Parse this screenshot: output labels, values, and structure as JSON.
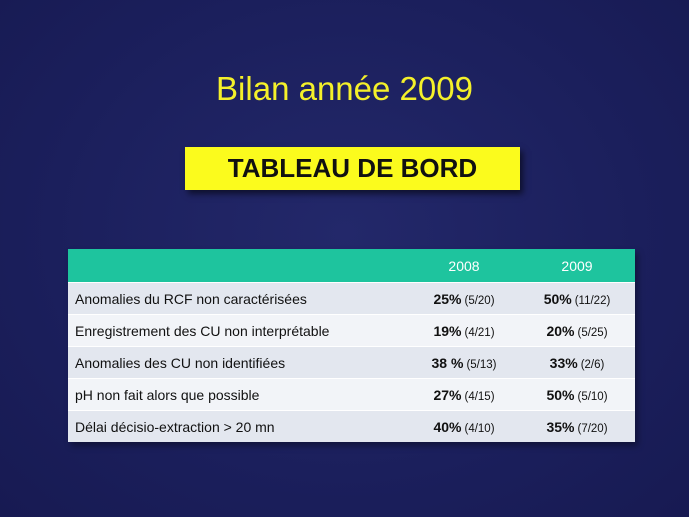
{
  "slide": {
    "title": "Bilan année 2009",
    "banner": "TABLEAU DE BORD"
  },
  "table": {
    "header": {
      "label": "",
      "col2008": "2008",
      "col2009": "2009"
    },
    "rows": [
      {
        "label": "Anomalies du RCF non caractérisées",
        "v2008_pct": "25%",
        "v2008_frac": "(5/20)",
        "v2009_pct": "50%",
        "v2009_frac": "(11/22)"
      },
      {
        "label": "Enregistrement des CU non interprétable",
        "v2008_pct": "19%",
        "v2008_frac": "(4/21)",
        "v2009_pct": "20%",
        "v2009_frac": "(5/25)"
      },
      {
        "label": "Anomalies des CU non identifiées",
        "v2008_pct": "38 %",
        "v2008_frac": "(5/13)",
        "v2009_pct": "33%",
        "v2009_frac": "(2/6)"
      },
      {
        "label": "pH non fait alors que possible",
        "v2008_pct": "27%",
        "v2008_frac": "(4/15)",
        "v2009_pct": "50%",
        "v2009_frac": "(5/10)"
      },
      {
        "label": "Délai décisio-extraction > 20 mn",
        "v2008_pct": "40%",
        "v2008_frac": "(4/10)",
        "v2009_pct": "35%",
        "v2009_frac": "(7/20)"
      }
    ]
  },
  "colors": {
    "background": "#1b1f5c",
    "title": "#f4f02a",
    "banner": "#fbfb1d",
    "header": "#1ec49e"
  }
}
